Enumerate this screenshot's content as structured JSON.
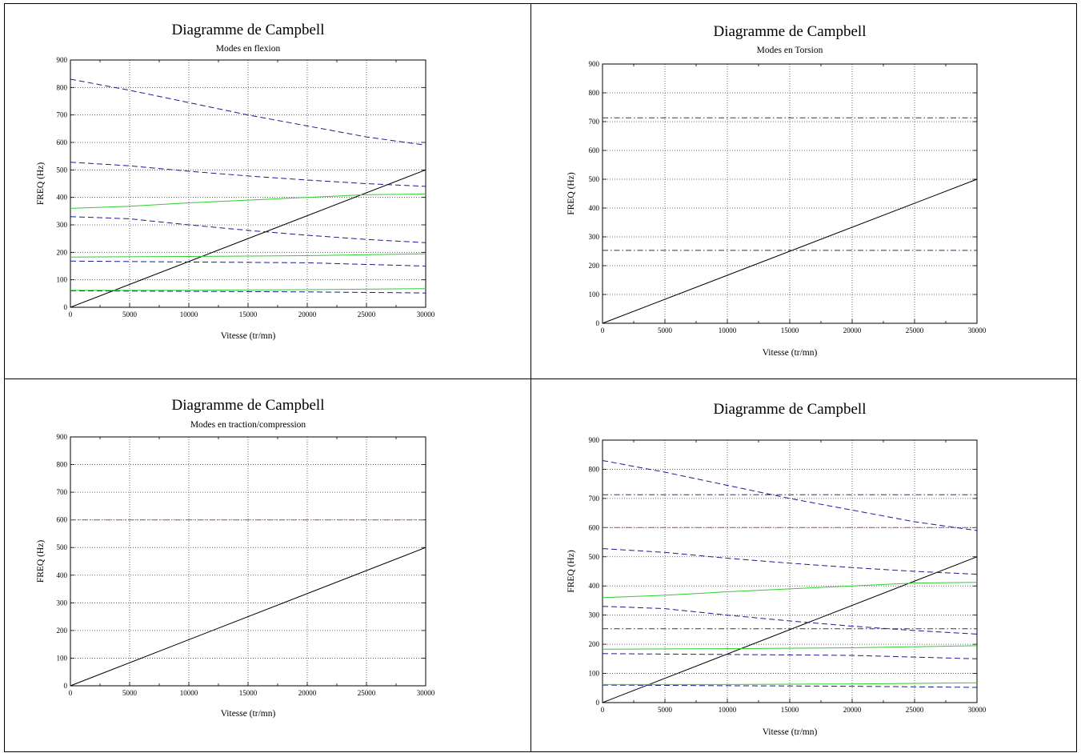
{
  "chart_data": [
    {
      "type": "line",
      "title": "Diagramme de Campbell",
      "subtitle": "Modes en flexion",
      "xlabel": "Vitesse (tr/mn)",
      "ylabel": "FREQ (Hz)",
      "xlim": [
        0,
        30000
      ],
      "ylim": [
        0,
        900
      ],
      "xticks": [
        0,
        5000,
        10000,
        15000,
        20000,
        25000,
        30000
      ],
      "yticks": [
        0,
        100,
        200,
        300,
        400,
        500,
        600,
        700,
        800,
        900
      ],
      "grid": true,
      "series": [
        {
          "style": "solid",
          "color": "#000000",
          "x": [
            0,
            30000
          ],
          "y": [
            0,
            500
          ]
        },
        {
          "style": "dashed",
          "color": "#1c1c8c",
          "x": [
            0,
            5000,
            10000,
            15000,
            20000,
            25000,
            30000
          ],
          "y": [
            830,
            790,
            745,
            700,
            660,
            620,
            590
          ]
        },
        {
          "style": "dashed",
          "color": "#1c1c8c",
          "x": [
            0,
            5000,
            10000,
            15000,
            20000,
            25000,
            30000
          ],
          "y": [
            528,
            515,
            495,
            478,
            463,
            450,
            440
          ]
        },
        {
          "style": "dashed",
          "color": "#1c1c8c",
          "x": [
            0,
            5000,
            10000,
            15000,
            20000,
            25000,
            30000
          ],
          "y": [
            330,
            322,
            300,
            280,
            262,
            247,
            235
          ]
        },
        {
          "style": "dashed",
          "color": "#1c1c8c",
          "x": [
            0,
            10000,
            20000,
            30000
          ],
          "y": [
            168,
            165,
            162,
            150
          ]
        },
        {
          "style": "dashed",
          "color": "#1c1c8c",
          "x": [
            0,
            10000,
            20000,
            30000
          ],
          "y": [
            60,
            58,
            56,
            52
          ]
        },
        {
          "style": "solid",
          "color": "#33cc33",
          "x": [
            0,
            5000,
            10000,
            15000,
            20000,
            25000,
            30000
          ],
          "y": [
            360,
            368,
            380,
            390,
            400,
            410,
            412
          ]
        },
        {
          "style": "solid",
          "color": "#33cc33",
          "x": [
            0,
            10000,
            20000,
            30000
          ],
          "y": [
            183,
            185,
            188,
            195
          ]
        },
        {
          "style": "solid",
          "color": "#33cc33",
          "x": [
            0,
            10000,
            20000,
            30000
          ],
          "y": [
            62,
            62,
            64,
            68
          ]
        }
      ]
    },
    {
      "type": "line",
      "title": "Diagramme de Campbell",
      "subtitle": "Modes en Torsion",
      "xlabel": "Vitesse (tr/mn)",
      "ylabel": "FREQ (Hz)",
      "xlim": [
        0,
        30000
      ],
      "ylim": [
        0,
        900
      ],
      "xticks": [
        0,
        5000,
        10000,
        15000,
        20000,
        25000,
        30000
      ],
      "yticks": [
        0,
        100,
        200,
        300,
        400,
        500,
        600,
        700,
        800,
        900
      ],
      "grid": true,
      "series": [
        {
          "style": "solid",
          "color": "#000000",
          "x": [
            0,
            30000
          ],
          "y": [
            0,
            500
          ]
        },
        {
          "style": "dashdot",
          "color": "#333355",
          "x": [
            0,
            30000
          ],
          "y": [
            713,
            713
          ]
        },
        {
          "style": "dashdot",
          "color": "#333355",
          "x": [
            0,
            30000
          ],
          "y": [
            253,
            253
          ]
        }
      ]
    },
    {
      "type": "line",
      "title": "Diagramme de Campbell",
      "subtitle": "Modes en traction/compression",
      "xlabel": "Vitesse (tr/mn)",
      "ylabel": "FREQ (Hz)",
      "xlim": [
        0,
        30000
      ],
      "ylim": [
        0,
        900
      ],
      "xticks": [
        0,
        5000,
        10000,
        15000,
        20000,
        25000,
        30000
      ],
      "yticks": [
        0,
        100,
        200,
        300,
        400,
        500,
        600,
        700,
        800,
        900
      ],
      "grid": true,
      "series": [
        {
          "style": "solid",
          "color": "#000000",
          "x": [
            0,
            30000
          ],
          "y": [
            0,
            500
          ]
        },
        {
          "style": "dashdot",
          "color": "#b040b0",
          "x": [
            0,
            30000
          ],
          "y": [
            600,
            600
          ]
        }
      ]
    },
    {
      "type": "line",
      "title": "Diagramme de Campbell",
      "subtitle": "",
      "xlabel": "Vitesse (tr/mn)",
      "ylabel": "FREQ (Hz)",
      "xlim": [
        0,
        30000
      ],
      "ylim": [
        0,
        900
      ],
      "xticks": [
        0,
        5000,
        10000,
        15000,
        20000,
        25000,
        30000
      ],
      "yticks": [
        0,
        100,
        200,
        300,
        400,
        500,
        600,
        700,
        800,
        900
      ],
      "grid": true,
      "series": [
        {
          "style": "solid",
          "color": "#000000",
          "x": [
            0,
            30000
          ],
          "y": [
            0,
            500
          ]
        },
        {
          "style": "dashed",
          "color": "#1c1c8c",
          "x": [
            0,
            5000,
            10000,
            15000,
            20000,
            25000,
            30000
          ],
          "y": [
            830,
            790,
            745,
            700,
            660,
            620,
            590
          ]
        },
        {
          "style": "dashed",
          "color": "#1c1c8c",
          "x": [
            0,
            5000,
            10000,
            15000,
            20000,
            25000,
            30000
          ],
          "y": [
            528,
            515,
            495,
            478,
            463,
            450,
            440
          ]
        },
        {
          "style": "dashed",
          "color": "#1c1c8c",
          "x": [
            0,
            5000,
            10000,
            15000,
            20000,
            25000,
            30000
          ],
          "y": [
            330,
            322,
            300,
            280,
            262,
            247,
            235
          ]
        },
        {
          "style": "dashed",
          "color": "#1c1c8c",
          "x": [
            0,
            10000,
            20000,
            30000
          ],
          "y": [
            168,
            165,
            162,
            150
          ]
        },
        {
          "style": "dashed",
          "color": "#1c1c8c",
          "x": [
            0,
            10000,
            20000,
            30000
          ],
          "y": [
            60,
            58,
            56,
            52
          ]
        },
        {
          "style": "solid",
          "color": "#33cc33",
          "x": [
            0,
            5000,
            10000,
            15000,
            20000,
            25000,
            30000
          ],
          "y": [
            360,
            368,
            380,
            390,
            400,
            410,
            412
          ]
        },
        {
          "style": "solid",
          "color": "#33cc33",
          "x": [
            0,
            10000,
            20000,
            30000
          ],
          "y": [
            183,
            185,
            188,
            195
          ]
        },
        {
          "style": "solid",
          "color": "#33cc33",
          "x": [
            0,
            10000,
            20000,
            30000
          ],
          "y": [
            62,
            62,
            64,
            68
          ]
        },
        {
          "style": "dashdot",
          "color": "#333355",
          "x": [
            0,
            30000
          ],
          "y": [
            713,
            713
          ]
        },
        {
          "style": "dashdot",
          "color": "#333355",
          "x": [
            0,
            30000
          ],
          "y": [
            253,
            253
          ]
        },
        {
          "style": "dashdot",
          "color": "#b040b0",
          "x": [
            0,
            30000
          ],
          "y": [
            600,
            600
          ]
        }
      ]
    }
  ]
}
